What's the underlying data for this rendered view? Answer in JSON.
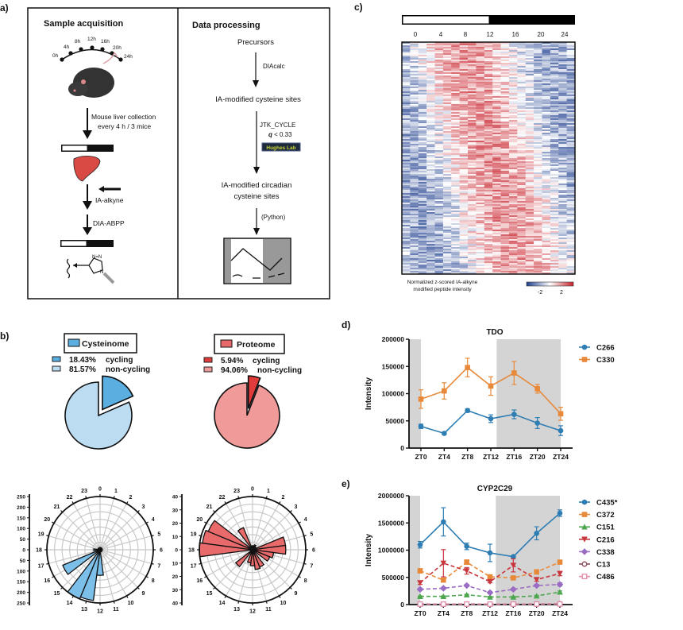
{
  "panels": {
    "a": "a)",
    "b": "b)",
    "c": "c)",
    "d": "d)",
    "e": "e)"
  },
  "panel_a": {
    "left_title": "Sample acquisition",
    "time_labels": [
      "0h",
      "4h",
      "8h",
      "12h",
      "16h",
      "20h",
      "24h"
    ],
    "collection_line1": "Mouse liver collection",
    "collection_line2": "every 4 h / 3 mice",
    "probe": "IA-alkyne",
    "method": "DIA-ABPP",
    "triazole_n1": "N=N",
    "triazole_n2": "N",
    "right_title": "Data processing",
    "step1": "Precursors",
    "tool1": "DIAcalc",
    "step2": "IA-modified cysteine sites",
    "tool2": "JTK_CYCLE",
    "q_label": "q",
    "q_value": " < 0.33",
    "lab_badge": "Hughes Lab",
    "step3_line1": "IA-modified circadian",
    "step3_line2": "cysteine sites",
    "tool3": "(Python)"
  },
  "chart_data": [
    {
      "type": "pie",
      "title": "Cysteinome",
      "slices": [
        {
          "label": "cycling",
          "pct_label": "18.43%",
          "value": 18.43,
          "color": "#5aaee0",
          "exploded": true
        },
        {
          "label": "non-cycling",
          "pct_label": "81.57%",
          "value": 81.57,
          "color": "#bcdcf2"
        }
      ]
    },
    {
      "type": "pie",
      "title": "Proteome",
      "slices": [
        {
          "label": "cycling",
          "pct_label": "5.94%",
          "value": 5.94,
          "color": "#e23b3b",
          "exploded": true
        },
        {
          "label": "non-cycling",
          "pct_label": "94.06%",
          "value": 94.06,
          "color": "#f09a9a"
        }
      ]
    },
    {
      "type": "polar-bar",
      "hours": [
        "0",
        "1",
        "2",
        "3",
        "4",
        "5",
        "6",
        "7",
        "8",
        "9",
        "10",
        "11",
        "12",
        "13",
        "14",
        "15",
        "16",
        "17",
        "18",
        "19",
        "20",
        "21",
        "22",
        "23"
      ],
      "values": [
        5,
        4,
        3,
        0,
        0,
        0,
        0,
        0,
        0,
        0,
        0,
        0,
        120,
        240,
        250,
        0,
        190,
        0,
        30,
        0,
        0,
        0,
        6,
        6
      ],
      "r_ticks": [
        "250",
        "200",
        "150",
        "100",
        "50",
        "0",
        "50",
        "100",
        "150",
        "200",
        "250"
      ],
      "rmax": 250,
      "color": "#7cc0ea"
    },
    {
      "type": "polar-bar",
      "hours": [
        "0",
        "1",
        "2",
        "3",
        "4",
        "5",
        "6",
        "7",
        "8",
        "9",
        "10",
        "11",
        "12",
        "13",
        "14",
        "15",
        "16",
        "17",
        "18",
        "19",
        "20",
        "21",
        "22",
        "23"
      ],
      "values": [
        3,
        3,
        4,
        3,
        0,
        25,
        25,
        16,
        14,
        0,
        14,
        15,
        12,
        10,
        0,
        16,
        0,
        0,
        40,
        38,
        36,
        0,
        18,
        0
      ],
      "r_ticks": [
        "40",
        "30",
        "20",
        "10",
        "0",
        "10",
        "20",
        "30",
        "40"
      ],
      "rmax": 40,
      "color": "#e96a6a"
    },
    {
      "type": "heatmap",
      "column_labels": [
        "0",
        "4",
        "8",
        "12",
        "16",
        "20",
        "24"
      ],
      "legend_line1": "Normalized z-scored IA-alkyne",
      "legend_line2": "modified peptide intensity",
      "colorbar_ticks": [
        "-2",
        "2"
      ],
      "colormap": [
        "#1f3f8f",
        "#ffffff",
        "#c8202a"
      ],
      "light_dark_bar": [
        "light",
        "dark"
      ]
    },
    {
      "type": "line",
      "title": "TDO",
      "ylabel": "Intensity",
      "categories": [
        "ZT0",
        "ZT4",
        "ZT8",
        "ZT12",
        "ZT16",
        "ZT20",
        "ZT24"
      ],
      "x": [
        0,
        4,
        8,
        12,
        16,
        20,
        24
      ],
      "ylim": [
        0,
        200000
      ],
      "yticks": [
        "0",
        "50000",
        "100000",
        "150000",
        "200000"
      ],
      "shaded_x": [
        [
          -2,
          0
        ],
        [
          13,
          24
        ]
      ],
      "series": [
        {
          "name": "C266",
          "color": "#2e7db3",
          "marker": "circle",
          "dashed": false,
          "values": [
            40000,
            27000,
            69000,
            54000,
            62000,
            46000,
            32000
          ],
          "errors": [
            4000,
            2000,
            3000,
            7000,
            8000,
            10000,
            9000
          ]
        },
        {
          "name": "C330",
          "color": "#e8893a",
          "marker": "square",
          "dashed": false,
          "values": [
            90000,
            105000,
            148000,
            114000,
            138000,
            109000,
            63000
          ],
          "errors": [
            17000,
            15000,
            17000,
            17000,
            21000,
            8000,
            12000
          ]
        }
      ]
    },
    {
      "type": "line",
      "title": "CYP2C29",
      "ylabel": "Intensity",
      "categories": [
        "ZT0",
        "ZT4",
        "ZT8",
        "ZT12",
        "ZT16",
        "ZT20",
        "ZT24"
      ],
      "x": [
        0,
        4,
        8,
        12,
        16,
        20,
        24
      ],
      "ylim": [
        0,
        2000000
      ],
      "yticks": [
        "0",
        "500000",
        "1000000",
        "1500000",
        "2000000"
      ],
      "shaded_x": [
        [
          -2,
          0
        ],
        [
          13,
          24
        ]
      ],
      "series": [
        {
          "name": "C435*",
          "color": "#2e7db3",
          "marker": "circle",
          "dashed": false,
          "values": [
            1100000,
            1520000,
            1070000,
            950000,
            880000,
            1310000,
            1680000
          ],
          "errors": [
            60000,
            260000,
            60000,
            160000,
            0,
            120000,
            60000
          ]
        },
        {
          "name": "C372",
          "color": "#e8893a",
          "marker": "square",
          "dashed": true,
          "values": [
            620000,
            450000,
            780000,
            510000,
            490000,
            600000,
            780000
          ],
          "errors": [
            40000,
            30000,
            40000,
            30000,
            30000,
            40000,
            30000
          ]
        },
        {
          "name": "C151",
          "color": "#4ea64e",
          "marker": "triangle",
          "dashed": true,
          "values": [
            150000,
            150000,
            180000,
            140000,
            140000,
            160000,
            230000
          ],
          "errors": [
            10000,
            10000,
            10000,
            10000,
            10000,
            10000,
            20000
          ]
        },
        {
          "name": "C216",
          "color": "#c8363e",
          "marker": "triangle-down",
          "dashed": true,
          "values": [
            400000,
            760000,
            620000,
            420000,
            720000,
            460000,
            570000
          ],
          "errors": [
            30000,
            250000,
            60000,
            20000,
            120000,
            30000,
            40000
          ]
        },
        {
          "name": "C338",
          "color": "#9b6cc4",
          "marker": "diamond",
          "dashed": true,
          "values": [
            280000,
            300000,
            350000,
            220000,
            280000,
            350000,
            370000
          ],
          "errors": [
            20000,
            20000,
            20000,
            20000,
            20000,
            20000,
            30000
          ]
        },
        {
          "name": "C13",
          "color": "#8e4c5c",
          "marker": "circle-open",
          "dashed": true,
          "values": [
            12000,
            10000,
            12000,
            10000,
            10000,
            12000,
            15000
          ],
          "errors": [
            0,
            0,
            0,
            0,
            0,
            0,
            0
          ]
        },
        {
          "name": "C486",
          "color": "#e28aa8",
          "marker": "square-open",
          "dashed": true,
          "values": [
            8000,
            8000,
            9000,
            8000,
            8000,
            9000,
            10000
          ],
          "errors": [
            0,
            0,
            0,
            0,
            0,
            0,
            0
          ]
        }
      ]
    }
  ]
}
